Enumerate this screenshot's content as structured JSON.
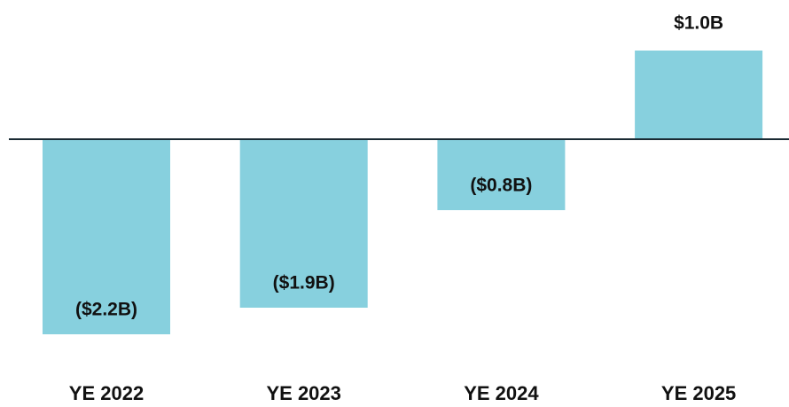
{
  "chart_data": {
    "type": "bar",
    "categories": [
      "YE 2022",
      "YE 2023",
      "YE 2024",
      "YE 2025"
    ],
    "values": [
      -2.2,
      -1.9,
      -0.8,
      1.0
    ],
    "value_labels": [
      "($2.2B)",
      "($1.9B)",
      "($0.8B)",
      "$1.0B"
    ],
    "color": "#87d0de"
  }
}
